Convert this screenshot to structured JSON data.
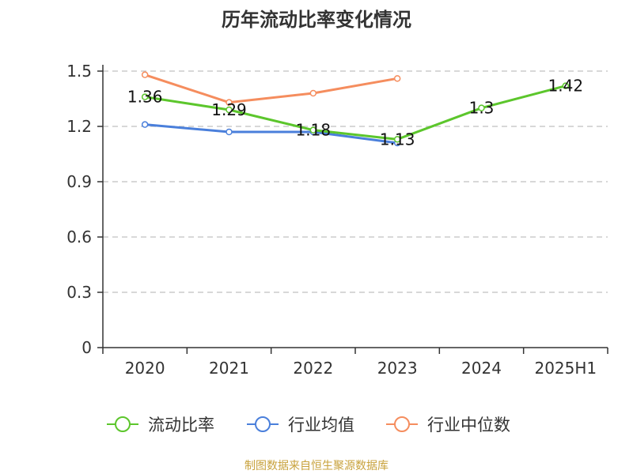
{
  "chart_data": {
    "type": "line",
    "title": "历年流动比率变化情况",
    "categories": [
      "2020",
      "2021",
      "2022",
      "2023",
      "2024",
      "2025H1"
    ],
    "y_ticks": [
      "0",
      "0.3",
      "0.6",
      "0.9",
      "1.2",
      "1.5"
    ],
    "ylim": [
      0,
      1.5
    ],
    "grid": true,
    "legend_position": "bottom",
    "series": [
      {
        "name": "流动比率",
        "color": "#5cc62c",
        "values": [
          1.36,
          1.29,
          1.18,
          1.13,
          1.3,
          1.42
        ],
        "labels": [
          "1.36",
          "1.29",
          "1.18",
          "1.13",
          "1.3",
          "1.42"
        ]
      },
      {
        "name": "行业均值",
        "color": "#4a7fdb",
        "values": [
          1.21,
          1.17,
          1.17,
          1.11,
          null,
          null
        ]
      },
      {
        "name": "行业中位数",
        "color": "#f58d5e",
        "values": [
          1.48,
          1.33,
          1.38,
          1.46,
          null,
          null
        ]
      }
    ],
    "source": "制图数据来自恒生聚源数据库",
    "source_color": "#c8a23c"
  }
}
